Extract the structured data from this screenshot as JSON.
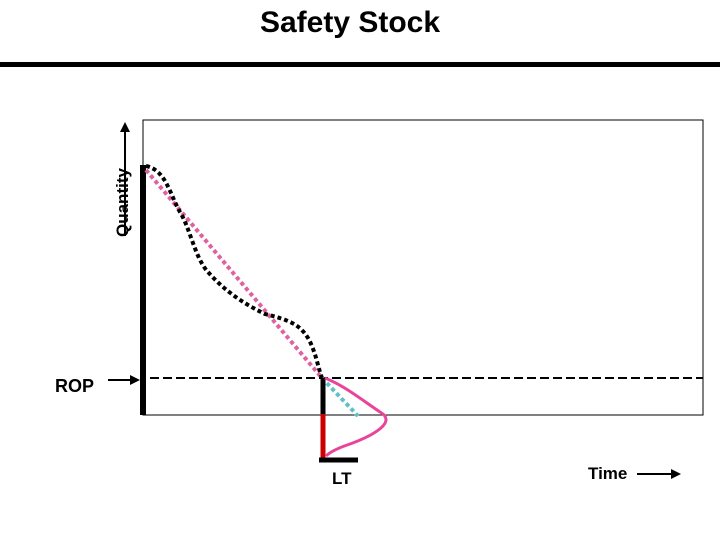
{
  "title": "Safety Stock",
  "labels": {
    "y_axis": "Quantity",
    "reorder_point": "ROP",
    "lead_time": "LT",
    "x_axis": "Time"
  },
  "colors": {
    "actual_demand": "#000000",
    "expected_demand": "#e060a0",
    "lead_time_projection": "#60c0c8",
    "lead_time_bar": "#cc0000",
    "distribution": "#e8449a",
    "axes": "#000000"
  }
}
